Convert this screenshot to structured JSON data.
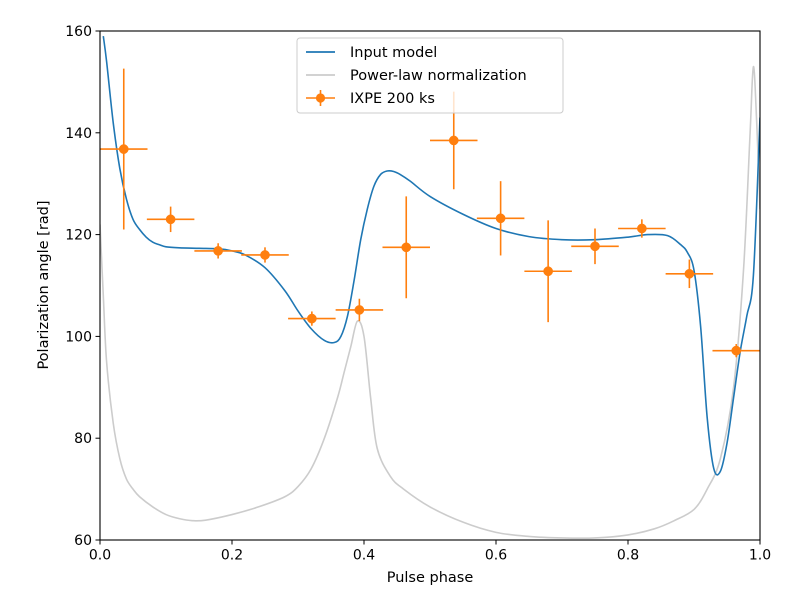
{
  "colors": {
    "model": "#1f77b4",
    "normalization": "#cccccc",
    "data": "#ff7f0e",
    "axes": "#000000",
    "background": "#ffffff"
  },
  "chart_data": {
    "type": "line",
    "title": "",
    "xlabel": "Pulse phase",
    "ylabel": "Polarization angle [rad]",
    "xlim": [
      0.0,
      1.0
    ],
    "ylim": [
      60,
      160
    ],
    "xticks": [
      0.0,
      0.2,
      0.4,
      0.6,
      0.8,
      1.0
    ],
    "xtick_labels": [
      "0.0",
      "0.2",
      "0.4",
      "0.6",
      "0.8",
      "1.0"
    ],
    "yticks": [
      60,
      80,
      100,
      120,
      140,
      160
    ],
    "ytick_labels": [
      "60",
      "80",
      "100",
      "120",
      "140",
      "160"
    ],
    "grid": false,
    "legend_position": "top-center",
    "legend": [
      "Input model",
      "Power-law normalization",
      "IXPE 200 ks"
    ],
    "series": [
      {
        "name": "Input model",
        "kind": "line",
        "x": [
          0.005,
          0.01,
          0.02,
          0.03,
          0.04,
          0.05,
          0.06,
          0.07,
          0.08,
          0.09,
          0.1,
          0.12,
          0.15,
          0.18,
          0.2,
          0.22,
          0.25,
          0.28,
          0.3,
          0.32,
          0.34,
          0.355,
          0.365,
          0.375,
          0.385,
          0.395,
          0.405,
          0.415,
          0.425,
          0.435,
          0.445,
          0.455,
          0.47,
          0.5,
          0.55,
          0.6,
          0.65,
          0.7,
          0.75,
          0.8,
          0.83,
          0.86,
          0.88,
          0.89,
          0.9,
          0.91,
          0.92,
          0.93,
          0.94,
          0.95,
          0.96,
          0.97,
          0.98,
          0.99,
          1.0
        ],
        "y": [
          159,
          154,
          142,
          133,
          127,
          123,
          121,
          119.5,
          118.5,
          118,
          117.6,
          117.4,
          117.3,
          117.2,
          116.8,
          116,
          113.5,
          109,
          105,
          101.5,
          99.2,
          98.8,
          100,
          104,
          111,
          119,
          125,
          129.5,
          131.8,
          132.5,
          132.4,
          131.8,
          130.5,
          127.5,
          124,
          121.2,
          119.6,
          119,
          119,
          119.5,
          120,
          119.8,
          118,
          116.5,
          113,
          102,
          84,
          74,
          73.5,
          79,
          88,
          97,
          104,
          112,
          143
        ]
      },
      {
        "name": "Power-law normalization",
        "kind": "line",
        "x": [
          0.0,
          0.005,
          0.01,
          0.02,
          0.03,
          0.04,
          0.05,
          0.06,
          0.08,
          0.1,
          0.12,
          0.14,
          0.16,
          0.2,
          0.24,
          0.28,
          0.3,
          0.32,
          0.34,
          0.36,
          0.37,
          0.38,
          0.39,
          0.4,
          0.41,
          0.42,
          0.44,
          0.46,
          0.5,
          0.55,
          0.6,
          0.65,
          0.7,
          0.75,
          0.8,
          0.84,
          0.87,
          0.9,
          0.92,
          0.94,
          0.96,
          0.975,
          0.985,
          0.99,
          0.995,
          1.0
        ],
        "y": [
          122,
          108,
          95,
          83,
          76,
          72,
          70,
          68.5,
          66.5,
          65,
          64.2,
          63.8,
          63.9,
          65,
          66.5,
          68.5,
          70.5,
          74,
          80,
          88,
          93,
          98,
          103,
          100,
          88,
          78,
          72.5,
          70,
          66.5,
          63.5,
          61.5,
          60.7,
          60.4,
          60.4,
          61,
          62.2,
          63.8,
          66,
          70,
          76,
          90,
          113,
          140,
          153,
          142,
          125
        ]
      },
      {
        "name": "IXPE 200 ks",
        "kind": "errorbar",
        "x": [
          0.036,
          0.107,
          0.179,
          0.25,
          0.321,
          0.393,
          0.464,
          0.536,
          0.607,
          0.679,
          0.75,
          0.821,
          0.893,
          0.964
        ],
        "y": [
          136.8,
          123.0,
          116.8,
          116.0,
          103.5,
          105.2,
          117.5,
          138.5,
          123.2,
          112.8,
          117.7,
          121.2,
          112.3,
          97.2
        ],
        "xerr": [
          0.036,
          0.036,
          0.036,
          0.036,
          0.036,
          0.036,
          0.036,
          0.036,
          0.036,
          0.036,
          0.036,
          0.036,
          0.036,
          0.036
        ],
        "yerr": [
          15.8,
          2.5,
          1.5,
          1.5,
          1.4,
          2.2,
          10.0,
          9.6,
          7.3,
          10.0,
          3.5,
          1.8,
          2.8,
          1.3
        ]
      }
    ]
  }
}
